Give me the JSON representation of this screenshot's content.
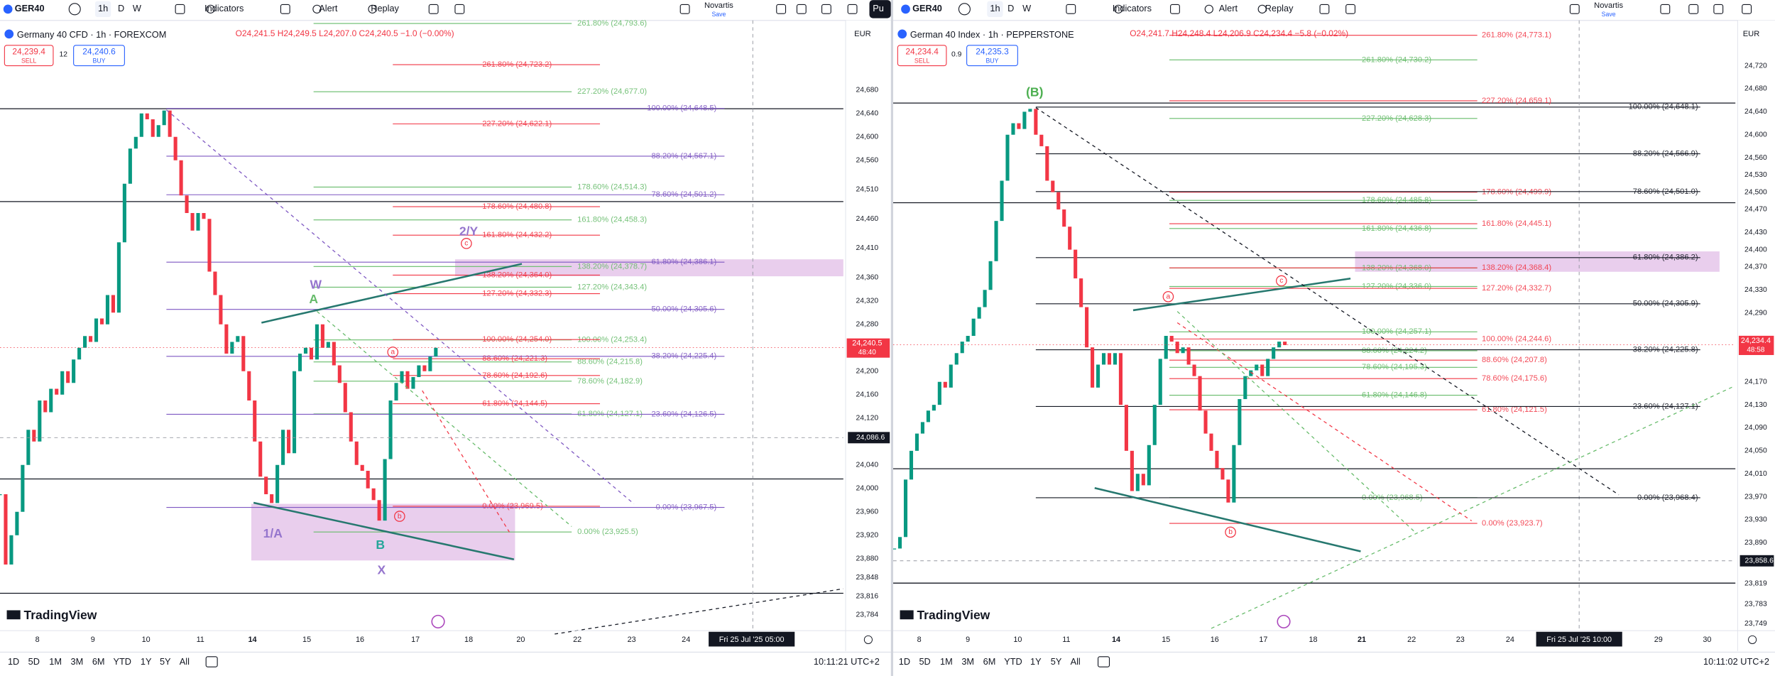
{
  "panels": [
    {
      "toolbar": {
        "symbol": "GER40",
        "intervals": [
          "1h",
          "D",
          "W"
        ],
        "buttons": [
          "Indicators",
          "Alert",
          "Replay"
        ],
        "watch": "Novartis",
        "watch_sub": "Save",
        "extra": "Pu"
      },
      "legend": {
        "title": "Germany 40 CFD · 1h · FOREXCOM",
        "ohlc": "O24,241.5 H24,249.5 L24,207.0 C24,240.5 −1.0 (−0.00%)",
        "sell_price": "24,239.4",
        "sell": "SELL",
        "spread": "12",
        "buy_price": "24,240.6",
        "buy": "BUY"
      },
      "currency": "EUR",
      "logo": "TradingView",
      "ranges": [
        "1D",
        "5D",
        "1M",
        "3M",
        "6M",
        "YTD",
        "1Y",
        "5Y",
        "All"
      ],
      "clock": "10:11:21 UTC+2"
    },
    {
      "toolbar": {
        "symbol": "GER40",
        "intervals": [
          "1h",
          "D",
          "W"
        ],
        "buttons": [
          "Indicators",
          "Alert",
          "Replay"
        ],
        "watch": "Novartis",
        "watch_sub": "Save"
      },
      "legend": {
        "title": "German 40 Index · 1h · PEPPERSTONE",
        "ohlc": "O24,241.7 H24,248.4 L24,206.9 C24,234.4 −5.8 (−0.02%)",
        "sell_price": "24,234.4",
        "sell": "SELL",
        "spread": "0.9",
        "buy_price": "24,235.3",
        "buy": "BUY"
      },
      "currency": "EUR",
      "logo": "TradingView",
      "ranges": [
        "1D",
        "5D",
        "1M",
        "3M",
        "6M",
        "YTD",
        "1Y",
        "5Y",
        "All"
      ],
      "clock": "10:11:02 UTC+2"
    }
  ],
  "chart_data": [
    {
      "type": "candlestick",
      "values": [
        23990,
        23870,
        23920,
        23960,
        24040,
        24100,
        24080,
        24150,
        24130,
        24170,
        24160,
        24200,
        24180,
        24220,
        24240,
        24260,
        24250,
        24290,
        24280,
        24330,
        24300,
        24420,
        24520,
        24580,
        24600,
        24640,
        24630,
        24600,
        24620,
        24645,
        24600,
        24560,
        24500,
        24470,
        24440,
        24470,
        24460,
        24370,
        24330,
        24280,
        24230,
        24250,
        24260,
        24200,
        24150,
        24080,
        24020,
        23990,
        23975,
        24040,
        24100,
        24060,
        24200,
        24230,
        24240,
        24220,
        24280,
        24240,
        24250,
        24210,
        24180,
        24130,
        24080,
        24040,
        24030,
        24000,
        23980,
        23945,
        24050,
        24150,
        24180,
        24200,
        24170,
        24190,
        24210,
        24200,
        24225,
        24240
      ],
      "up_color": "#089981",
      "down_color": "#f23645",
      "ylim": [
        23761,
        24791
      ],
      "yticks": [
        {
          "value": 24680,
          "label": "24,680"
        },
        {
          "value": 24640,
          "label": "24,640"
        },
        {
          "value": 24600,
          "label": "24,600"
        },
        {
          "value": 24560,
          "label": "24,560"
        },
        {
          "value": 24510,
          "label": "24,510"
        },
        {
          "value": 24460,
          "label": "24,460"
        },
        {
          "value": 24410,
          "label": "24,410"
        },
        {
          "value": 24360,
          "label": "24,360"
        },
        {
          "value": 24320,
          "label": "24,320"
        },
        {
          "value": 24280,
          "label": "24,280"
        },
        {
          "value": 24200,
          "label": "24,200"
        },
        {
          "value": 24160,
          "label": "24,160"
        },
        {
          "value": 24120,
          "label": "24,120"
        },
        {
          "value": 24040,
          "label": "24,040"
        },
        {
          "value": 24000,
          "label": "24,000"
        },
        {
          "value": 23960,
          "label": "23,960"
        },
        {
          "value": 23920,
          "label": "23,920"
        },
        {
          "value": 23880,
          "label": "23,880"
        },
        {
          "value": 23848,
          "label": "23,848"
        },
        {
          "value": 23816,
          "label": "23,816"
        },
        {
          "value": 23784,
          "label": "23,784"
        }
      ],
      "x_labels": [
        "8",
        "9",
        "10",
        "11",
        "14",
        "15",
        "16",
        "17",
        "18",
        "20",
        "22",
        "23",
        "24",
        "Fri 25 Jul '25  05:00"
      ],
      "fibs": [
        {
          "color": "#66bb6a",
          "levels": [
            {
              "value": 24793.6,
              "label": "261.80% (24,793.6)"
            },
            {
              "value": 24677.0,
              "label": "227.20% (24,677.0)"
            },
            {
              "value": 24514.3,
              "label": "178.60% (24,514.3)"
            },
            {
              "value": 24458.3,
              "label": "161.80% (24,458.3)"
            },
            {
              "value": 24378.7,
              "label": "138.20% (24,378.7)"
            },
            {
              "value": 24343.4,
              "label": "127.20% (24,343.4)"
            },
            {
              "value": 24253.4,
              "label": "100.00% (24,253.4)"
            },
            {
              "value": 24215.8,
              "label": "88.60% (24,215.8)"
            },
            {
              "value": 24182.9,
              "label": "78.60% (24,182.9)"
            },
            {
              "value": 24127.1,
              "label": "61.80% (24,127.1)"
            },
            {
              "value": 23925.5,
              "label": "0.00% (23,925.5)"
            }
          ]
        },
        {
          "color": "#f23645",
          "levels": [
            {
              "value": 24723.2,
              "label": "261.80% (24,723.2)"
            },
            {
              "value": 24622.1,
              "label": "227.20% (24,622.1)"
            },
            {
              "value": 24480.8,
              "label": "178.60% (24,480.8)"
            },
            {
              "value": 24432.2,
              "label": "161.80% (24,432.2)"
            },
            {
              "value": 24364.0,
              "label": "138.20% (24,364.0)"
            },
            {
              "value": 24332.3,
              "label": "127.20% (24,332.3)"
            },
            {
              "value": 24254.0,
              "label": "100.00% (24,254.0)"
            },
            {
              "value": 24221.3,
              "label": "88.60% (24,221.3)"
            },
            {
              "value": 24192.6,
              "label": "78.60% (24,192.6)"
            },
            {
              "value": 24144.5,
              "label": "61.80% (24,144.5)"
            },
            {
              "value": 23969.5,
              "label": "0.00% (23,969.5)"
            }
          ]
        },
        {
          "color": "#7e57c2",
          "levels": [
            {
              "value": 24648.5,
              "label": "100.00% (24,648.5)"
            },
            {
              "value": 24567.1,
              "label": "88.20% (24,567.1)"
            },
            {
              "value": 24501.2,
              "label": "78.60% (24,501.2)"
            },
            {
              "value": 24386.1,
              "label": "61.80% (24,386.1)"
            },
            {
              "value": 24305.6,
              "label": "50.00% (24,305.6)"
            },
            {
              "value": 24225.4,
              "label": "38.20% (24,225.4)"
            },
            {
              "value": 24126.5,
              "label": "23.60% (24,126.5)"
            },
            {
              "value": 23967.5,
              "label": "0.00% (23,967.5)"
            }
          ]
        }
      ],
      "current_price": {
        "value": 24240.5,
        "label": "24,240.5",
        "countdown": "48:40"
      },
      "crosshair": {
        "value": 24086.6,
        "label": "24,086.6"
      },
      "annotations": [
        {
          "text": "W",
          "color": "#9575cd"
        },
        {
          "text": "A",
          "color": "#66bb6a"
        },
        {
          "text": "2/Y",
          "color": "#9575cd"
        },
        {
          "text": "c",
          "color": "#f23645"
        },
        {
          "text": "1/A",
          "color": "#9575cd"
        },
        {
          "text": "B",
          "color": "#26a69a"
        },
        {
          "text": "X",
          "color": "#9575cd"
        },
        {
          "text": "a",
          "color": "#f23645"
        },
        {
          "text": "b",
          "color": "#f23645"
        }
      ]
    },
    {
      "type": "candlestick",
      "values": [
        23880,
        23900,
        24000,
        24050,
        24080,
        24100,
        24120,
        24130,
        24170,
        24160,
        24200,
        24220,
        24240,
        24250,
        24280,
        24300,
        24330,
        24380,
        24450,
        24520,
        24600,
        24620,
        24610,
        24640,
        24645,
        24600,
        24580,
        24520,
        24500,
        24470,
        24440,
        24400,
        24350,
        24300,
        24230,
        24160,
        24200,
        24220,
        24200,
        24220,
        24130,
        24050,
        23980,
        24010,
        23990,
        24060,
        24130,
        24210,
        24250,
        24240,
        24220,
        24230,
        24200,
        24180,
        24120,
        24080,
        24050,
        24020,
        24000,
        23960,
        24060,
        24140,
        24180,
        24190,
        24200,
        24180,
        24210,
        24230,
        24240,
        24234
      ],
      "up_color": "#089981",
      "down_color": "#f23645",
      "ylim": [
        23741,
        24791
      ],
      "yticks": [
        {
          "value": 24720,
          "label": "24,720"
        },
        {
          "value": 24680,
          "label": "24,680"
        },
        {
          "value": 24640,
          "label": "24,640"
        },
        {
          "value": 24600,
          "label": "24,600"
        },
        {
          "value": 24560,
          "label": "24,560"
        },
        {
          "value": 24530,
          "label": "24,530"
        },
        {
          "value": 24500,
          "label": "24,500"
        },
        {
          "value": 24470,
          "label": "24,470"
        },
        {
          "value": 24430,
          "label": "24,430"
        },
        {
          "value": 24400,
          "label": "24,400"
        },
        {
          "value": 24370,
          "label": "24,370"
        },
        {
          "value": 24330,
          "label": "24,330"
        },
        {
          "value": 24290,
          "label": "24,290"
        },
        {
          "value": 24170,
          "label": "24,170"
        },
        {
          "value": 24130,
          "label": "24,130"
        },
        {
          "value": 24090,
          "label": "24,090"
        },
        {
          "value": 24050,
          "label": "24,050"
        },
        {
          "value": 24010,
          "label": "24,010"
        },
        {
          "value": 23970,
          "label": "23,970"
        },
        {
          "value": 23930,
          "label": "23,930"
        },
        {
          "value": 23890,
          "label": "23,890"
        },
        {
          "value": 23819,
          "label": "23,819"
        },
        {
          "value": 23783,
          "label": "23,783"
        },
        {
          "value": 23749,
          "label": "23,749"
        }
      ],
      "x_labels": [
        "8",
        "9",
        "10",
        "11",
        "14",
        "15",
        "16",
        "17",
        "18",
        "21",
        "22",
        "23",
        "24",
        "Fri 25 Jul '25  10:00",
        "29",
        "30"
      ],
      "fibs": [
        {
          "color": "#66bb6a",
          "levels": [
            {
              "value": 24730.2,
              "label": "261.80% (24,730.2)"
            },
            {
              "value": 24628.3,
              "label": "227.20% (24,628.3)"
            },
            {
              "value": 24485.8,
              "label": "178.60% (24,485.8)"
            },
            {
              "value": 24436.8,
              "label": "161.80% (24,436.8)"
            },
            {
              "value": 24368.0,
              "label": "138.20% (24,368.0)"
            },
            {
              "value": 24336.0,
              "label": "127.20% (24,336.0)"
            },
            {
              "value": 24257.1,
              "label": "100.00% (24,257.1)"
            },
            {
              "value": 24224.2,
              "label": "88.60% (24,224.2)"
            },
            {
              "value": 24195.3,
              "label": "78.60% (24,195.3)"
            },
            {
              "value": 24146.8,
              "label": "61.80% (24,146.8)"
            },
            {
              "value": 23968.5,
              "label": "0.00% (23,968.5)"
            }
          ]
        },
        {
          "color": "#f23645",
          "levels": [
            {
              "value": 24773.1,
              "label": "261.80% (24,773.1)"
            },
            {
              "value": 24659.1,
              "label": "227.20% (24,659.1)"
            },
            {
              "value": 24499.9,
              "label": "178.60% (24,499.9)"
            },
            {
              "value": 24445.1,
              "label": "161.80% (24,445.1)"
            },
            {
              "value": 24368.4,
              "label": "138.20% (24,368.4)"
            },
            {
              "value": 24332.7,
              "label": "127.20% (24,332.7)"
            },
            {
              "value": 24244.6,
              "label": "100.00% (24,244.6)"
            },
            {
              "value": 24207.8,
              "label": "88.60% (24,207.8)"
            },
            {
              "value": 24175.6,
              "label": "78.60% (24,175.6)"
            },
            {
              "value": 24121.5,
              "label": "61.80% (24,121.5)"
            },
            {
              "value": 23923.7,
              "label": "0.00% (23,923.7)"
            }
          ]
        },
        {
          "color": "#131722",
          "levels": [
            {
              "value": 24648.1,
              "label": "100.00% (24,648.1)"
            },
            {
              "value": 24566.9,
              "label": "88.20% (24,566.9)"
            },
            {
              "value": 24501.0,
              "label": "78.60% (24,501.0)"
            },
            {
              "value": 24386.2,
              "label": "61.80% (24,386.2)"
            },
            {
              "value": 24305.9,
              "label": "50.00% (24,305.9)"
            },
            {
              "value": 24225.8,
              "label": "38.20% (24,225.8)"
            },
            {
              "value": 24127.1,
              "label": "23.60% (24,127.1)"
            },
            {
              "value": 23968.4,
              "label": "0.00% (23,968.4)"
            }
          ]
        }
      ],
      "current_price": {
        "value": 24234.4,
        "label": "24,234.4",
        "countdown": "48:58"
      },
      "crosshair": {
        "value": 23858.6,
        "label": "23,858.6"
      },
      "annotations": [
        {
          "text": "(B)",
          "color": "#4caf50"
        },
        {
          "text": "a",
          "color": "#f23645"
        },
        {
          "text": "c",
          "color": "#f23645"
        },
        {
          "text": "b",
          "color": "#f23645"
        }
      ]
    }
  ]
}
